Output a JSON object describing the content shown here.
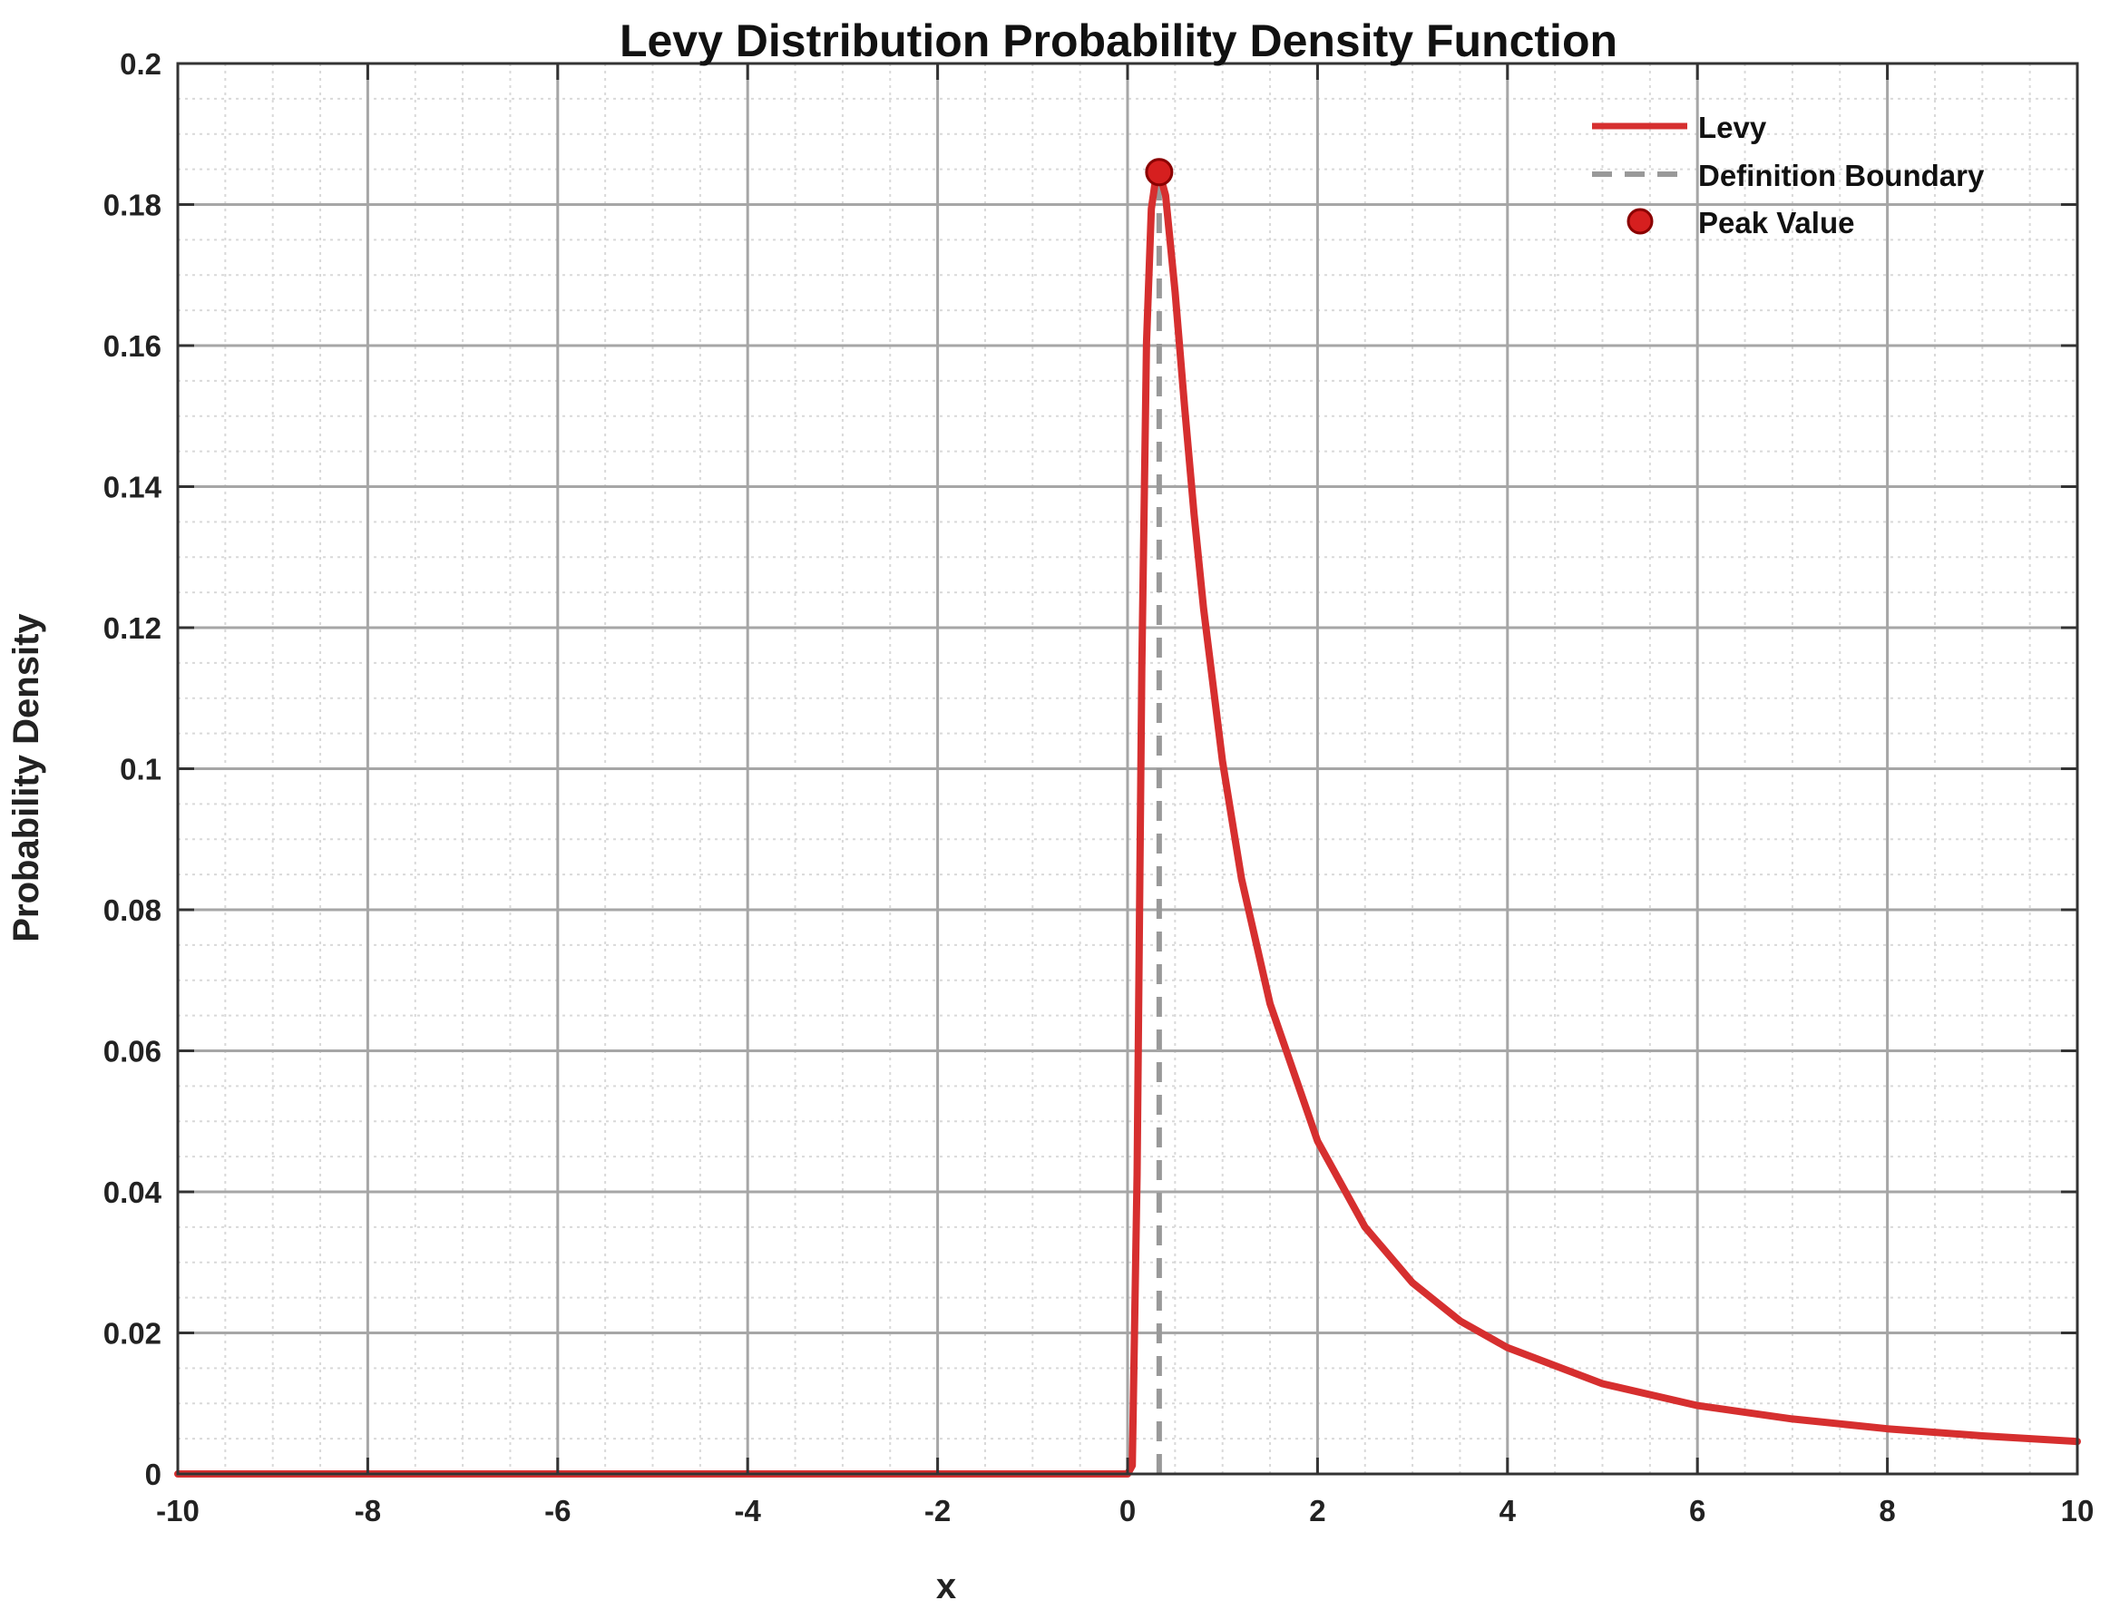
{
  "chart_data": {
    "type": "line",
    "title": "Levy Distribution Probability Density Function",
    "xlabel": "x",
    "ylabel": "Probability Density",
    "xlim": [
      -10,
      10
    ],
    "ylim": [
      0,
      0.2
    ],
    "xticks": [
      -10,
      -8,
      -6,
      -4,
      -2,
      0,
      2,
      4,
      6,
      8,
      10
    ],
    "xtick_labels": [
      "-10",
      "-8",
      "-6",
      "-4",
      "-2",
      "0",
      "2",
      "4",
      "6",
      "8",
      "10"
    ],
    "yticks": [
      0,
      0.02,
      0.04,
      0.06,
      0.08,
      0.1,
      0.12,
      0.14,
      0.16,
      0.18,
      0.2
    ],
    "ytick_labels": [
      "0",
      "0.02",
      "0.04",
      "0.06",
      "0.08",
      "0.1",
      "0.12",
      "0.14",
      "0.16",
      "0.18",
      "0.2"
    ],
    "grid": true,
    "minor_grid": true,
    "legend_position": "top-right",
    "series": [
      {
        "name": "Levy",
        "kind": "line",
        "color": "#d62f2f",
        "x": [
          -10,
          -2,
          0,
          0.05,
          0.1,
          0.15,
          0.2,
          0.25,
          0.3,
          0.333,
          0.4,
          0.5,
          0.6,
          0.7,
          0.8,
          1.0,
          1.2,
          1.5,
          2.0,
          2.5,
          3.0,
          3.5,
          4.0,
          5.0,
          6.0,
          7.0,
          8.0,
          9.0,
          10.0
        ],
        "y": [
          0,
          0,
          0,
          0.0012,
          0.0425,
          0.1143,
          0.1605,
          0.1794,
          0.184,
          0.1846,
          0.1813,
          0.1676,
          0.1514,
          0.1361,
          0.1227,
          0.101,
          0.0844,
          0.0667,
          0.0472,
          0.035,
          0.0271,
          0.0217,
          0.0179,
          0.0128,
          0.0097,
          0.0078,
          0.0064,
          0.0054,
          0.0046
        ]
      },
      {
        "name": "Definition Boundary",
        "kind": "vline",
        "color": "#999999",
        "x": [
          0.333,
          0.333
        ],
        "y": [
          0,
          0.1846
        ]
      },
      {
        "name": "Peak Value",
        "kind": "marker",
        "color": "#d61f1f",
        "x": [
          0.333
        ],
        "y": [
          0.1846
        ]
      }
    ]
  }
}
